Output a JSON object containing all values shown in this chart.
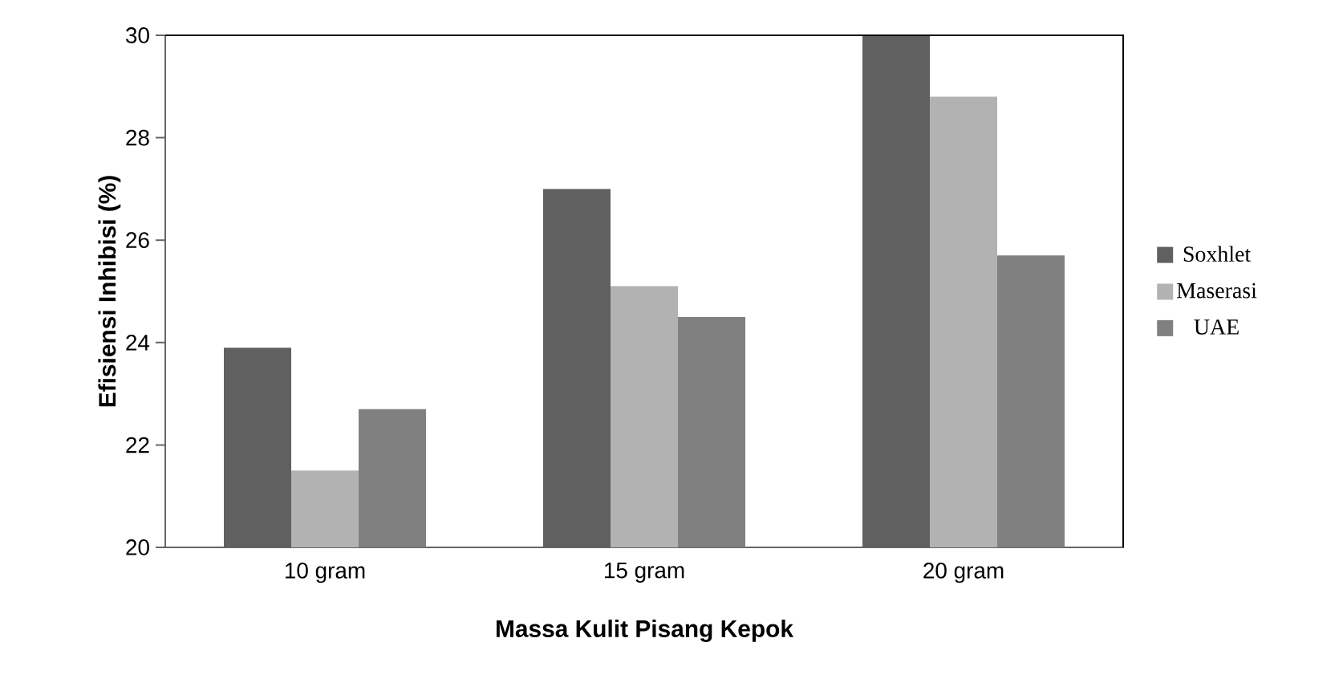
{
  "chart_data": {
    "type": "bar",
    "xlabel": "Massa Kulit Pisang Kepok",
    "ylabel": "Efisiensi Inhibisi (%)",
    "categories": [
      "10 gram",
      "15 gram",
      "20 gram"
    ],
    "series": [
      {
        "name": "Soxhlet",
        "color": "#606060",
        "values": [
          23.9,
          27.0,
          30.0
        ]
      },
      {
        "name": "Maserasi",
        "color": "#b2b2b2",
        "values": [
          21.5,
          25.1,
          28.8
        ]
      },
      {
        "name": "UAE",
        "color": "#808080",
        "values": [
          22.7,
          24.5,
          25.7
        ]
      }
    ],
    "ylim": [
      20,
      30
    ],
    "yticks": [
      20,
      22,
      24,
      26,
      28,
      30
    ],
    "legend": "right",
    "grid": false
  }
}
